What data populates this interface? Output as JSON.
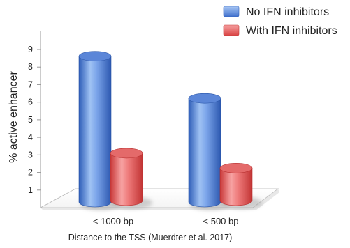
{
  "chart_data": {
    "type": "bar",
    "title": "",
    "xlabel": "Distance to the TSS (Muerdter et al. 2017)",
    "ylabel": "% active enhancer",
    "ylim": [
      0,
      9
    ],
    "yticks": [
      1,
      2,
      3,
      4,
      5,
      6,
      7,
      8,
      9
    ],
    "categories": [
      "< 1000 bp",
      "< 500 bp"
    ],
    "series": [
      {
        "name": "No IFN inhibitors",
        "values": [
          8.3,
          5.9
        ],
        "color": "#4f7fd6"
      },
      {
        "name": "With IFN inhibitors",
        "values": [
          2.7,
          1.85
        ],
        "color": "#e05555"
      }
    ],
    "legend": "top-right",
    "grid": false,
    "style": "3d-cylinder"
  }
}
